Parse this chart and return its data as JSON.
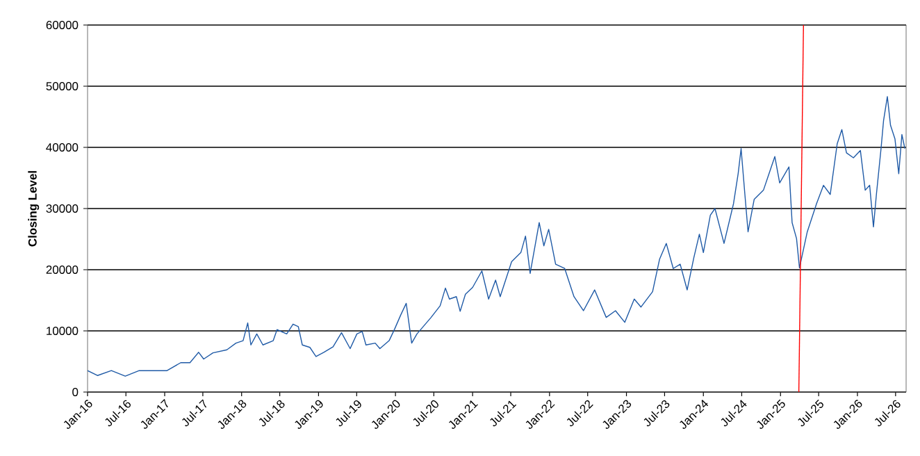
{
  "chart_data": {
    "type": "line",
    "ylabel": "Closing Level",
    "xlim": [
      "2016-01-01",
      "2026-08-20"
    ],
    "ylim": [
      0,
      60000
    ],
    "xticks": [
      {
        "value": "2016-01-01",
        "label": "Jan-16"
      },
      {
        "value": "2016-07-01",
        "label": "Jul-16"
      },
      {
        "value": "2017-01-01",
        "label": "Jan-17"
      },
      {
        "value": "2017-07-01",
        "label": "Jul-17"
      },
      {
        "value": "2018-01-01",
        "label": "Jan-18"
      },
      {
        "value": "2018-07-01",
        "label": "Jul-18"
      },
      {
        "value": "2019-01-01",
        "label": "Jan-19"
      },
      {
        "value": "2019-07-01",
        "label": "Jul-19"
      },
      {
        "value": "2020-01-01",
        "label": "Jan-20"
      },
      {
        "value": "2020-07-01",
        "label": "Jul-20"
      },
      {
        "value": "2021-01-01",
        "label": "Jan-21"
      },
      {
        "value": "2021-07-01",
        "label": "Jul-21"
      },
      {
        "value": "2022-01-01",
        "label": "Jan-22"
      },
      {
        "value": "2022-07-01",
        "label": "Jul-22"
      },
      {
        "value": "2023-01-01",
        "label": "Jan-23"
      },
      {
        "value": "2023-07-01",
        "label": "Jul-23"
      },
      {
        "value": "2024-01-01",
        "label": "Jan-24"
      },
      {
        "value": "2024-07-01",
        "label": "Jul-24"
      },
      {
        "value": "2025-01-01",
        "label": "Jan-25"
      },
      {
        "value": "2025-07-01",
        "label": "Jul-25"
      },
      {
        "value": "2026-01-01",
        "label": "Jan-26"
      },
      {
        "value": "2026-07-01",
        "label": "Jul-26"
      }
    ],
    "yticks": [
      0,
      10000,
      20000,
      30000,
      40000,
      50000,
      60000
    ],
    "grid": "y",
    "series": [
      {
        "color": "#1f5aa6",
        "x": [
          "2016-01-01",
          "2016-02-17",
          "2016-04-23",
          "2016-06-28",
          "2016-09-02",
          "2016-11-06",
          "2017-01-12",
          "2017-03-18",
          "2017-05-01",
          "2017-06-11",
          "2017-07-05",
          "2017-08-18",
          "2017-10-23",
          "2017-12-05",
          "2018-01-08",
          "2018-01-30",
          "2018-02-14",
          "2018-03-14",
          "2018-04-12",
          "2018-05-31",
          "2018-06-18",
          "2018-08-03",
          "2018-09-02",
          "2018-09-27",
          "2018-10-16",
          "2018-11-21",
          "2018-12-20",
          "2019-01-26",
          "2019-03-11",
          "2019-04-20",
          "2019-05-31",
          "2019-07-02",
          "2019-07-27",
          "2019-08-14",
          "2019-09-27",
          "2019-10-19",
          "2019-12-02",
          "2019-12-28",
          "2020-01-26",
          "2020-02-21",
          "2020-03-18",
          "2020-04-12",
          "2020-06-18",
          "2020-07-31",
          "2020-08-25",
          "2020-09-13",
          "2020-10-16",
          "2020-11-03",
          "2020-11-28",
          "2021-01-01",
          "2021-02-14",
          "2021-03-18",
          "2021-04-20",
          "2021-05-12",
          "2021-07-05",
          "2021-08-18",
          "2021-09-09",
          "2021-10-01",
          "2021-11-13",
          "2021-12-05",
          "2021-12-28",
          "2022-01-30",
          "2022-03-14",
          "2022-04-27",
          "2022-06-11",
          "2022-08-03",
          "2022-09-27",
          "2022-11-10",
          "2022-12-24",
          "2023-02-07",
          "2023-03-11",
          "2023-05-05",
          "2023-06-07",
          "2023-07-09",
          "2023-08-11",
          "2023-09-13",
          "2023-10-16",
          "2023-11-17",
          "2023-12-13",
          "2024-01-01",
          "2024-02-03",
          "2024-02-25",
          "2024-04-08",
          "2024-05-23",
          "2024-06-14",
          "2024-06-28",
          "2024-07-16",
          "2024-07-31",
          "2024-08-29",
          "2024-10-12",
          "2024-12-05",
          "2024-12-28",
          "2025-02-10",
          "2025-02-25",
          "2025-03-18",
          "2025-04-01",
          "2025-05-08",
          "2025-06-21",
          "2025-07-24",
          "2025-08-25",
          "2025-09-27",
          "2025-10-19",
          "2025-11-10",
          "2025-12-13",
          "2026-01-15",
          "2026-02-07",
          "2026-02-28",
          "2026-03-18",
          "2026-04-01",
          "2026-04-23",
          "2026-05-05",
          "2026-05-23",
          "2026-06-07",
          "2026-06-28",
          "2026-07-16",
          "2026-07-31",
          "2026-08-14"
        ],
        "values": [
          3500,
          2700,
          3500,
          2600,
          3500,
          3500,
          3500,
          4800,
          4800,
          6500,
          5400,
          6400,
          6900,
          8000,
          8400,
          11300,
          7700,
          9500,
          7700,
          8400,
          10200,
          9500,
          11100,
          10700,
          7700,
          7300,
          5800,
          6500,
          7400,
          9700,
          7100,
          9500,
          9900,
          7700,
          8000,
          7100,
          8400,
          10300,
          12600,
          14500,
          8000,
          9500,
          12200,
          14100,
          17000,
          15200,
          15600,
          13200,
          16000,
          17100,
          19800,
          15200,
          18300,
          15600,
          21300,
          22800,
          25500,
          19400,
          27700,
          23900,
          26600,
          20900,
          20200,
          15600,
          13300,
          16700,
          12200,
          13300,
          11400,
          15200,
          13900,
          16400,
          21700,
          24300,
          20200,
          20900,
          16700,
          22000,
          25800,
          22800,
          28900,
          30000,
          24300,
          30800,
          35700,
          39800,
          32300,
          26200,
          31500,
          33000,
          38500,
          34200,
          36800,
          27700,
          25100,
          20300,
          26200,
          30800,
          33800,
          32300,
          40600,
          42900,
          39100,
          38300,
          39500,
          33000,
          33800,
          27000,
          32300,
          39800,
          44400,
          48300,
          43600,
          41400,
          35700,
          42100,
          39800
        ]
      },
      {
        "color": "#ff0000",
        "x": [
          "2025-03-29",
          "2025-04-20"
        ],
        "values": [
          0,
          60000
        ]
      }
    ]
  }
}
